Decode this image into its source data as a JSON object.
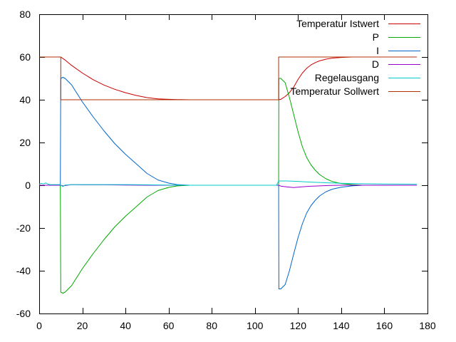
{
  "chart_data": {
    "type": "line",
    "title": "",
    "xlabel": "",
    "ylabel": "",
    "xlim": [
      0,
      180
    ],
    "ylim": [
      -60,
      80
    ],
    "x_ticks": [
      0,
      20,
      40,
      60,
      80,
      100,
      120,
      140,
      160,
      180
    ],
    "y_ticks": [
      -60,
      -40,
      -20,
      0,
      20,
      40,
      60,
      80
    ],
    "grid": false,
    "legend_position": "top-right",
    "series": [
      {
        "name": "Temperatur Istwert",
        "color": "#cc0000",
        "points": [
          [
            0,
            60
          ],
          [
            10,
            60
          ],
          [
            12,
            58.6
          ],
          [
            15,
            56.1
          ],
          [
            20,
            52.5
          ],
          [
            25,
            49.4
          ],
          [
            30,
            46.9
          ],
          [
            35,
            44.9
          ],
          [
            40,
            43.3
          ],
          [
            45,
            42
          ],
          [
            50,
            41
          ],
          [
            55,
            40.4
          ],
          [
            60,
            40.2
          ],
          [
            64,
            40.1
          ],
          [
            70,
            40
          ],
          [
            110,
            40
          ],
          [
            111,
            40
          ],
          [
            112,
            40.2
          ],
          [
            114,
            41.5
          ],
          [
            116,
            43.3
          ],
          [
            118,
            46
          ],
          [
            120,
            49.5
          ],
          [
            122,
            52.5
          ],
          [
            124,
            54.7
          ],
          [
            126,
            56.3
          ],
          [
            128,
            57.4
          ],
          [
            130,
            58.2
          ],
          [
            133,
            59
          ],
          [
            136,
            59.5
          ],
          [
            140,
            59.8
          ],
          [
            145,
            60
          ],
          [
            175,
            60
          ]
        ]
      },
      {
        "name": "P",
        "color": "#00aa00",
        "points": [
          [
            0,
            0
          ],
          [
            9.8,
            0
          ],
          [
            10,
            -50
          ],
          [
            11,
            -50.5
          ],
          [
            12,
            -50
          ],
          [
            15,
            -47
          ],
          [
            20,
            -39
          ],
          [
            25,
            -32
          ],
          [
            30,
            -25.5
          ],
          [
            35,
            -19.5
          ],
          [
            40,
            -14.5
          ],
          [
            45,
            -10
          ],
          [
            50,
            -5.5
          ],
          [
            55,
            -2.5
          ],
          [
            60,
            -1
          ],
          [
            64,
            -0.3
          ],
          [
            70,
            0
          ],
          [
            111,
            0
          ],
          [
            111.1,
            50
          ],
          [
            112,
            50
          ],
          [
            114,
            48
          ],
          [
            116,
            41
          ],
          [
            118,
            33
          ],
          [
            120,
            25
          ],
          [
            122,
            18
          ],
          [
            124,
            13
          ],
          [
            126,
            9.5
          ],
          [
            128,
            7
          ],
          [
            130,
            5
          ],
          [
            133,
            3
          ],
          [
            136,
            1.7
          ],
          [
            140,
            0.8
          ],
          [
            145,
            0.3
          ],
          [
            150,
            0
          ],
          [
            175,
            0
          ]
        ]
      },
      {
        "name": "I",
        "color": "#0066cc",
        "points": [
          [
            0,
            0
          ],
          [
            9.8,
            0
          ],
          [
            10,
            50
          ],
          [
            11,
            50.5
          ],
          [
            12,
            50
          ],
          [
            15,
            47
          ],
          [
            20,
            39
          ],
          [
            25,
            32
          ],
          [
            30,
            25.5
          ],
          [
            35,
            19.5
          ],
          [
            40,
            14.5
          ],
          [
            45,
            10
          ],
          [
            50,
            5.5
          ],
          [
            55,
            2.5
          ],
          [
            60,
            1
          ],
          [
            64,
            0.3
          ],
          [
            70,
            0
          ],
          [
            111,
            0
          ],
          [
            111.1,
            -48.5
          ],
          [
            112,
            -48.5
          ],
          [
            114,
            -46.5
          ],
          [
            116,
            -40
          ],
          [
            118,
            -32
          ],
          [
            120,
            -24.5
          ],
          [
            122,
            -18
          ],
          [
            124,
            -13
          ],
          [
            126,
            -9.5
          ],
          [
            128,
            -7
          ],
          [
            130,
            -5
          ],
          [
            133,
            -3
          ],
          [
            136,
            -1.8
          ],
          [
            140,
            -0.9
          ],
          [
            145,
            -0.3
          ],
          [
            150,
            0
          ],
          [
            175,
            0
          ]
        ]
      },
      {
        "name": "D",
        "color": "#9900cc",
        "points": [
          [
            0,
            0
          ],
          [
            10,
            0
          ],
          [
            11,
            -0.3
          ],
          [
            15,
            0.3
          ],
          [
            20,
            0.2
          ],
          [
            30,
            0.2
          ],
          [
            40,
            0.1
          ],
          [
            50,
            0
          ],
          [
            60,
            0
          ],
          [
            110,
            0
          ],
          [
            111,
            0
          ],
          [
            112,
            -0.4
          ],
          [
            115,
            -0.8
          ],
          [
            118,
            -1.1
          ],
          [
            121,
            -0.8
          ],
          [
            125,
            -0.5
          ],
          [
            130,
            -0.3
          ],
          [
            135,
            -0.1
          ],
          [
            140,
            0
          ],
          [
            175,
            0
          ]
        ]
      },
      {
        "name": "Regelausgang",
        "color": "#00cccc",
        "points": [
          [
            0,
            0.5
          ],
          [
            1,
            0.9
          ],
          [
            2,
            0.6
          ],
          [
            3,
            1.1
          ],
          [
            4,
            0.5
          ],
          [
            5,
            0.3
          ],
          [
            9.8,
            0.3
          ],
          [
            10,
            0
          ],
          [
            11,
            -0.6
          ],
          [
            12,
            0.1
          ],
          [
            15,
            0.3
          ],
          [
            20,
            0.3
          ],
          [
            30,
            0.3
          ],
          [
            40,
            0.3
          ],
          [
            50,
            0.2
          ],
          [
            60,
            0.1
          ],
          [
            70,
            0
          ],
          [
            110,
            0
          ],
          [
            111,
            2
          ],
          [
            115,
            2
          ],
          [
            120,
            1.8
          ],
          [
            125,
            1.5
          ],
          [
            130,
            1.3
          ],
          [
            135,
            1.1
          ],
          [
            140,
            0.9
          ],
          [
            150,
            0.7
          ],
          [
            160,
            0.6
          ],
          [
            175,
            0.5
          ]
        ]
      },
      {
        "name": "Temperatur Sollwert",
        "color": "#b03000",
        "points": [
          [
            0,
            60
          ],
          [
            10,
            60
          ],
          [
            10,
            40
          ],
          [
            111,
            40
          ],
          [
            111,
            60
          ],
          [
            175,
            60
          ]
        ]
      }
    ]
  }
}
